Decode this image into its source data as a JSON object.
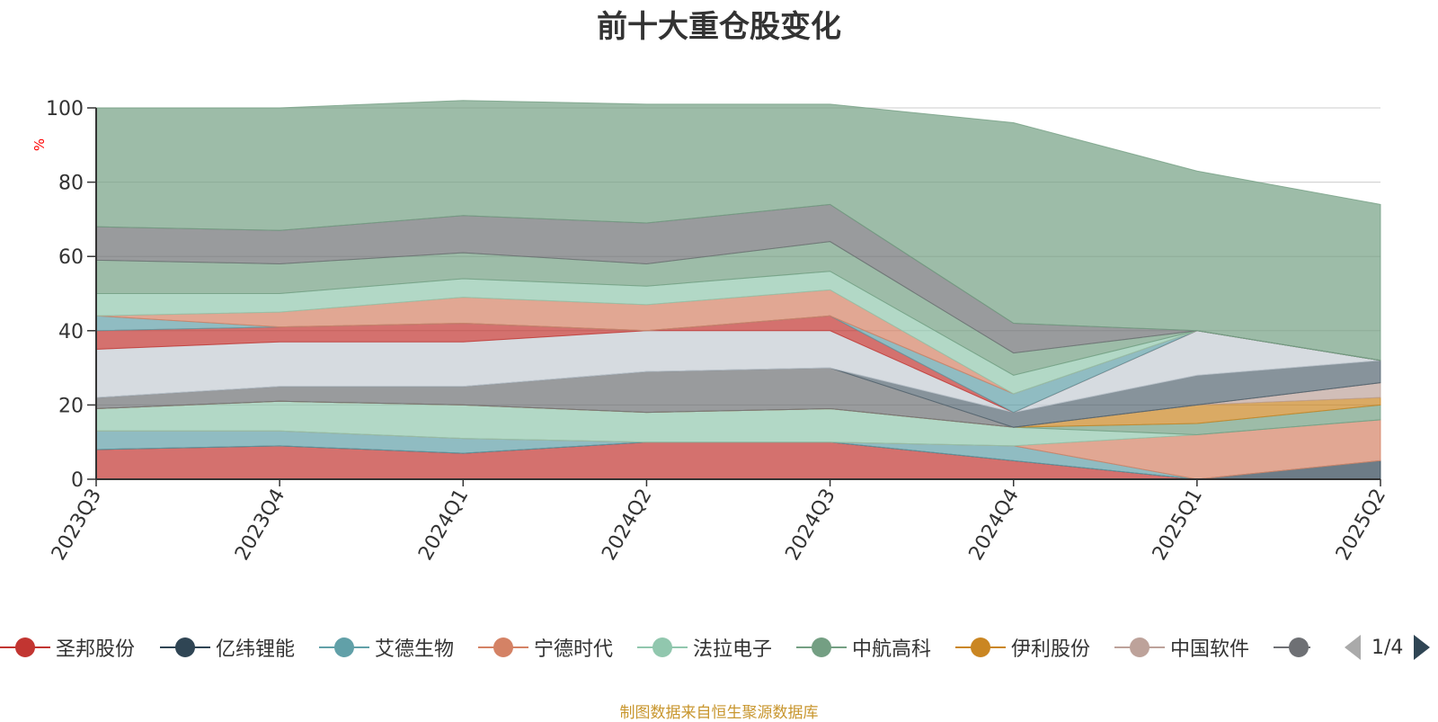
{
  "chart_data": {
    "type": "area",
    "stacked": true,
    "title": "前十大重仓股变化",
    "ylabel": "%",
    "ylim": [
      0,
      100
    ],
    "yticks": [
      0,
      20,
      40,
      60,
      80,
      100
    ],
    "categories": [
      "2023Q3",
      "2023Q4",
      "2024Q1",
      "2024Q2",
      "2024Q3",
      "2024Q4",
      "2025Q1",
      "2025Q2"
    ],
    "grid": true,
    "legend_position": "bottom",
    "series": [
      {
        "name": "圣邦股份",
        "color": "#c23531",
        "values": [
          8,
          9,
          7,
          10,
          10,
          5,
          0,
          0
        ]
      },
      {
        "name": "亿纬锂能",
        "color": "#2f4554",
        "values": [
          0,
          0,
          0,
          0,
          0,
          0,
          0,
          5
        ]
      },
      {
        "name": "艾德生物",
        "color": "#61a0a8",
        "values": [
          5,
          4,
          4,
          0,
          0,
          4,
          0,
          0
        ]
      },
      {
        "name": "宁德时代",
        "color": "#d48265",
        "values": [
          0,
          0,
          0,
          0,
          0,
          0,
          12,
          11
        ]
      },
      {
        "name": "法拉电子",
        "color": "#91c7ae",
        "values": [
          6,
          8,
          9,
          8,
          9,
          5,
          0,
          0
        ]
      },
      {
        "name": "中航高科",
        "color": "#749f83",
        "values": [
          0,
          0,
          0,
          0,
          0,
          0,
          3,
          4
        ]
      },
      {
        "name": "伊利股份",
        "color": "#ca8622",
        "values": [
          0,
          0,
          0,
          0,
          0,
          0,
          5,
          2
        ]
      },
      {
        "name": "中国软件",
        "color": "#bda29a",
        "values": [
          0,
          0,
          0,
          0,
          0,
          0,
          0,
          4
        ]
      },
      {
        "name": "",
        "color": "#6e7074",
        "values": [
          3,
          4,
          5,
          11,
          11,
          0,
          0,
          0
        ]
      },
      {
        "name": "",
        "color": "#546570",
        "values": [
          0,
          0,
          0,
          0,
          0,
          4,
          8,
          6
        ]
      },
      {
        "name": "",
        "color": "#c4ccd3",
        "values": [
          13,
          12,
          12,
          11,
          10,
          0,
          12,
          0
        ]
      },
      {
        "name": "",
        "color": "#c23531",
        "values": [
          5,
          4,
          5,
          0,
          4,
          0,
          0,
          0
        ]
      },
      {
        "name": "",
        "color": "#61a0a8",
        "values": [
          4,
          0,
          0,
          0,
          0,
          5,
          0,
          0
        ]
      },
      {
        "name": "",
        "color": "#d48265",
        "values": [
          0,
          4,
          7,
          7,
          7,
          0,
          0,
          0
        ]
      },
      {
        "name": "",
        "color": "#91c7ae",
        "values": [
          6,
          5,
          5,
          5,
          5,
          5,
          0,
          0
        ]
      },
      {
        "name": "",
        "color": "#749f83",
        "values": [
          9,
          8,
          7,
          6,
          8,
          6,
          0,
          0
        ]
      },
      {
        "name": "",
        "color": "#6e7074",
        "values": [
          9,
          9,
          10,
          11,
          10,
          8,
          0,
          0
        ]
      },
      {
        "name": "",
        "color": "#749f83",
        "values": [
          32,
          33,
          31,
          32,
          27,
          54,
          43,
          42
        ]
      }
    ]
  },
  "legend": {
    "items": [
      "圣邦股份",
      "亿纬锂能",
      "艾德生物",
      "宁德时代",
      "法拉电子",
      "中航高科",
      "伊利股份",
      "中国软件",
      "..."
    ],
    "page_text": "1/4"
  },
  "source_note": "制图数据来自恒生聚源数据库"
}
